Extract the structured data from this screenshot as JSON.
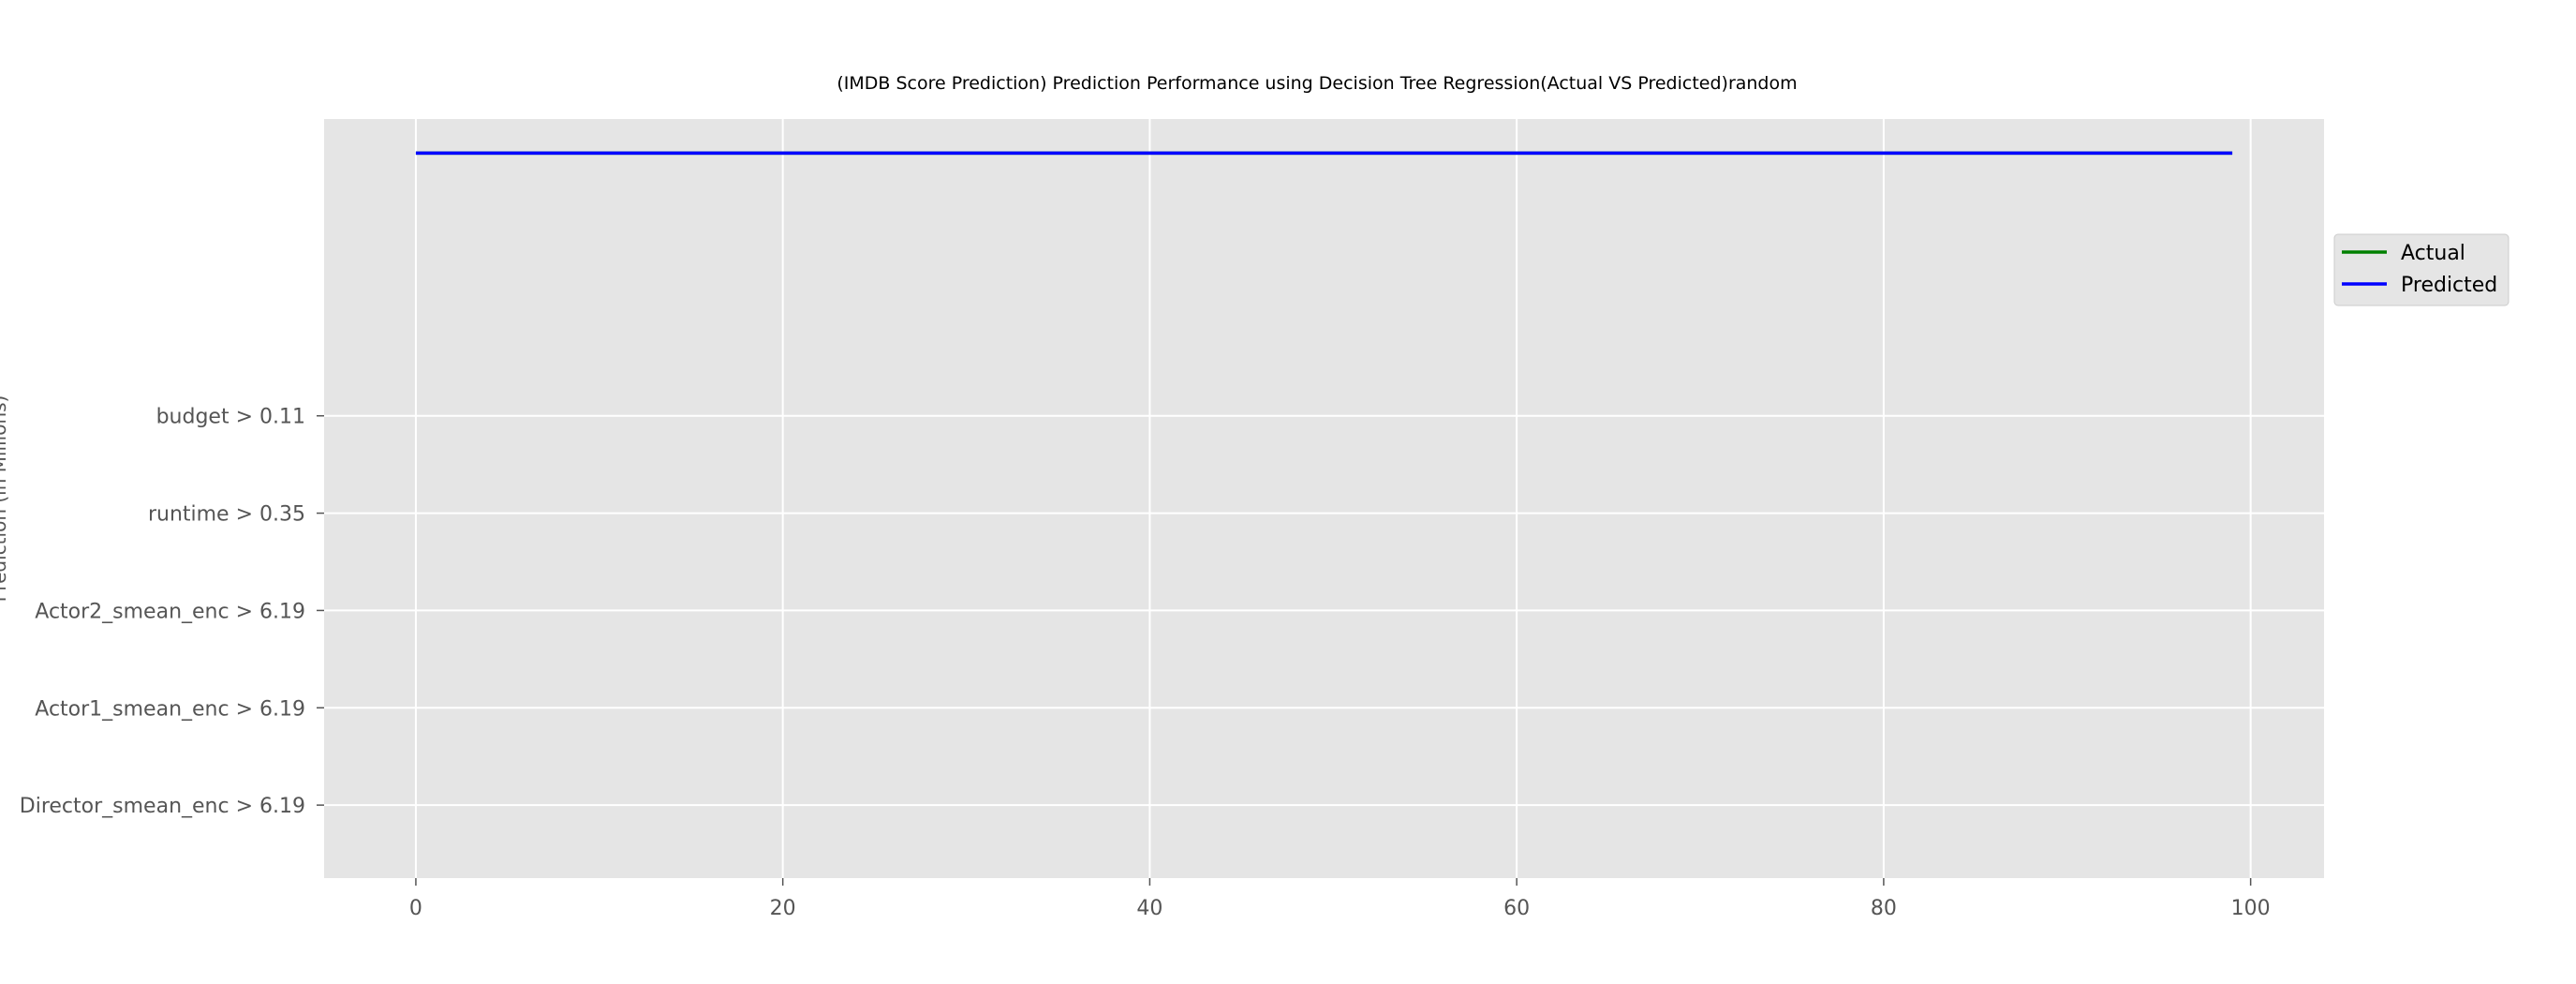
{
  "chart_data": {
    "type": "line",
    "title": "(IMDB Score Prediction) Prediction Performance using Decision Tree Regression(Actual VS Predicted)random",
    "xlabel": "",
    "ylabel": "Prediction (in Millions)",
    "x_ticks": [
      0,
      20,
      40,
      60,
      80,
      100
    ],
    "xlim": [
      -5,
      104
    ],
    "ylim": [
      -0.75,
      7.05
    ],
    "y_categories": [
      "Director_smean_enc > 6.19",
      "Actor1_smean_enc > 6.19",
      "Actor2_smean_enc > 6.19",
      "runtime > 0.35",
      "budget > 0.11"
    ],
    "grid": true,
    "legend_position": "outside-right",
    "series": [
      {
        "name": "Actual",
        "color": "#008000",
        "x_start": 0,
        "x_end": 99,
        "y": 6.7
      },
      {
        "name": "Predicted",
        "color": "#0000ff",
        "x_start": 0,
        "x_end": 99,
        "y": 6.7
      }
    ],
    "colors": {
      "axes_bg": "#e5e5e5",
      "grid": "#ffffff",
      "tick": "#555555"
    }
  }
}
